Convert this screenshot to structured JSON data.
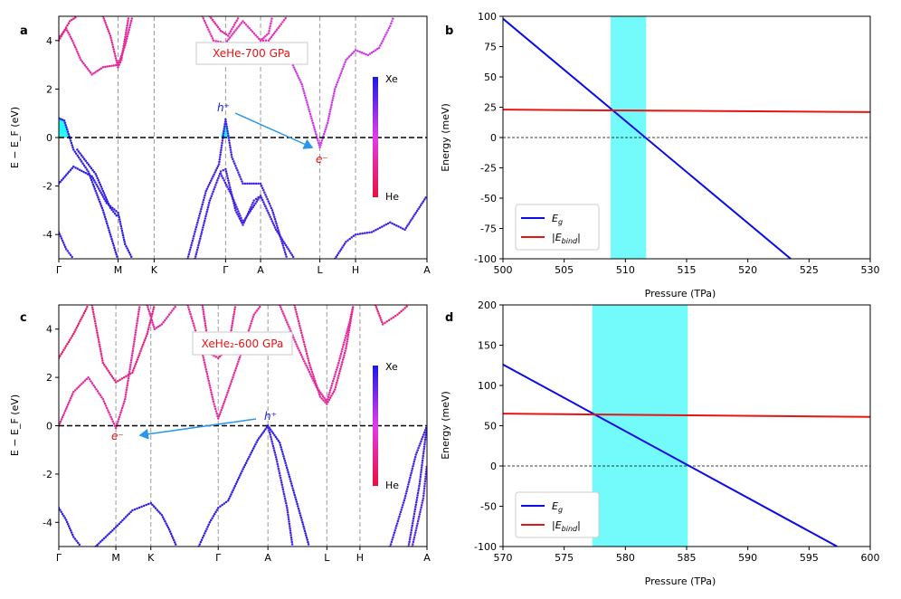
{
  "colors": {
    "xe": "#1a1ae6",
    "he": "#e8103c",
    "mid": "#e23ce8",
    "eg_line": "#0b0be8",
    "ebind_line": "#e81414",
    "shade": "#00f6f6",
    "arrow": "#2b96e6",
    "hole_label": "#1a1ae6",
    "electron_label": "#e81414",
    "title_text": "#e81414"
  },
  "chart_data": [
    {
      "panel": "a",
      "type": "band-structure",
      "title": "XeHe-700 GPa",
      "ylabel": "E − E_F (eV)",
      "ylim": [
        -5,
        5
      ],
      "yticks": [
        -4,
        -2,
        0,
        2,
        4
      ],
      "kpoints": [
        {
          "label": "Γ",
          "pos": 0
        },
        {
          "label": "M",
          "pos": 0.161
        },
        {
          "label": "K",
          "pos": 0.259
        },
        {
          "label": "Γ",
          "pos": 0.453
        },
        {
          "label": "A",
          "pos": 0.548
        },
        {
          "label": "L",
          "pos": 0.709
        },
        {
          "label": "H",
          "pos": 0.806
        },
        {
          "label": "A",
          "pos": 1
        }
      ],
      "colorbar": {
        "top": "Xe",
        "bottom": "He"
      },
      "hole_label": "h⁺",
      "electron_label": "e⁻",
      "bands": [
        {
          "weight": 0.95,
          "points": [
            [
              0,
              -1.9
            ],
            [
              0.04,
              -1.2
            ],
            [
              0.09,
              -1.6
            ],
            [
              0.13,
              -2.7
            ],
            [
              0.161,
              -3.1
            ],
            [
              0.18,
              -4.4
            ],
            [
              0.2,
              -5.0
            ]
          ]
        },
        {
          "weight": 0.95,
          "points": [
            [
              0,
              0.8
            ],
            [
              0.015,
              0.7
            ],
            [
              0.04,
              -0.5
            ],
            [
              0.08,
              -1.4
            ],
            [
              0.12,
              -3.0
            ],
            [
              0.16,
              -5.0
            ]
          ]
        },
        {
          "weight": 0.95,
          "points": [
            [
              0.05,
              -0.5
            ],
            [
              0.1,
              -1.5
            ],
            [
              0.14,
              -2.9
            ],
            [
              0.161,
              -3.3
            ]
          ]
        },
        {
          "weight": 0.9,
          "points": [
            [
              0,
              -3.9
            ],
            [
              0.02,
              -4.6
            ],
            [
              0.04,
              -5.0
            ]
          ]
        },
        {
          "weight": 0.9,
          "points": [
            [
              0.35,
              -5.0
            ],
            [
              0.4,
              -2.2
            ],
            [
              0.435,
              -1.1
            ],
            [
              0.453,
              0.75
            ],
            [
              0.47,
              -0.8
            ],
            [
              0.5,
              -1.9
            ],
            [
              0.548,
              -1.9
            ],
            [
              0.58,
              -3.0
            ],
            [
              0.62,
              -5.0
            ]
          ]
        },
        {
          "weight": 0.9,
          "points": [
            [
              0.37,
              -5.0
            ],
            [
              0.41,
              -2.6
            ],
            [
              0.44,
              -1.4
            ],
            [
              0.453,
              -1.3
            ],
            [
              0.48,
              -3.0
            ],
            [
              0.5,
              -3.6
            ],
            [
              0.53,
              -2.6
            ],
            [
              0.548,
              -2.4
            ],
            [
              0.59,
              -3.8
            ],
            [
              0.64,
              -5.0
            ]
          ]
        },
        {
          "weight": 0.9,
          "points": [
            [
              0.44,
              -1.5
            ],
            [
              0.47,
              -2.4
            ],
            [
              0.5,
              -3.5
            ],
            [
              0.548,
              -2.4
            ]
          ]
        },
        {
          "weight": 0.9,
          "points": [
            [
              0.75,
              -5.0
            ],
            [
              0.78,
              -4.3
            ],
            [
              0.806,
              -4.0
            ],
            [
              0.85,
              -3.9
            ],
            [
              0.9,
              -3.5
            ],
            [
              0.94,
              -3.8
            ],
            [
              0.97,
              -3.1
            ],
            [
              1.0,
              -2.4
            ]
          ]
        },
        {
          "weight": 0.55,
          "points": [
            [
              0.62,
              3.5
            ],
            [
              0.66,
              2.2
            ],
            [
              0.69,
              0.6
            ],
            [
              0.709,
              -0.4
            ],
            [
              0.73,
              0.6
            ],
            [
              0.75,
              2.0
            ],
            [
              0.78,
              3.2
            ],
            [
              0.806,
              3.6
            ],
            [
              0.84,
              3.4
            ],
            [
              0.87,
              3.7
            ],
            [
              0.9,
              4.6
            ],
            [
              0.91,
              5.0
            ]
          ]
        },
        {
          "weight": 0.3,
          "points": [
            [
              0,
              4.1
            ],
            [
              0.02,
              4.5
            ],
            [
              0.04,
              3.9
            ],
            [
              0.06,
              3.2
            ],
            [
              0.09,
              2.6
            ],
            [
              0.12,
              2.9
            ],
            [
              0.161,
              3.0
            ],
            [
              0.18,
              3.8
            ],
            [
              0.2,
              5.0
            ]
          ]
        },
        {
          "weight": 0.2,
          "points": [
            [
              0.0,
              4.0
            ],
            [
              0.03,
              4.8
            ],
            [
              0.05,
              5.0
            ]
          ]
        },
        {
          "weight": 0.25,
          "points": [
            [
              0.12,
              5.0
            ],
            [
              0.14,
              4.2
            ],
            [
              0.161,
              2.9
            ],
            [
              0.17,
              3.2
            ],
            [
              0.19,
              5.0
            ]
          ]
        },
        {
          "weight": 0.35,
          "points": [
            [
              0.39,
              5.0
            ],
            [
              0.42,
              4.0
            ],
            [
              0.453,
              3.9
            ],
            [
              0.5,
              4.8
            ],
            [
              0.548,
              4.0
            ],
            [
              0.57,
              4.0
            ],
            [
              0.6,
              4.6
            ],
            [
              0.62,
              5.0
            ]
          ]
        },
        {
          "weight": 0.3,
          "points": [
            [
              0.41,
              5.0
            ],
            [
              0.44,
              4.4
            ],
            [
              0.46,
              4.2
            ],
            [
              0.49,
              5.0
            ]
          ]
        },
        {
          "weight": 0.4,
          "points": [
            [
              0.548,
              4.0
            ],
            [
              0.57,
              4.3
            ],
            [
              0.58,
              5.0
            ]
          ]
        }
      ],
      "hole_pockets": [
        {
          "points": [
            [
              0,
              0.8
            ],
            [
              0.015,
              0.7
            ],
            [
              0.03,
              0
            ]
          ]
        },
        {
          "points": [
            [
              0.44,
              0
            ],
            [
              0.453,
              0.75
            ],
            [
              0.465,
              0
            ]
          ]
        }
      ]
    },
    {
      "panel": "b",
      "type": "line",
      "xlabel": "Pressure (TPa)",
      "ylabel": "Energy (meV)",
      "xlim": [
        500,
        530
      ],
      "ylim": [
        -100,
        100
      ],
      "xticks": [
        500,
        505,
        510,
        515,
        520,
        525,
        530
      ],
      "yticks": [
        -100,
        -75,
        -50,
        -25,
        0,
        25,
        50,
        75,
        100
      ],
      "shade_range": [
        508.8,
        511.7
      ],
      "series": [
        {
          "name": "E_g",
          "x": [
            500,
            523.5
          ],
          "y": [
            98,
            -100
          ]
        },
        {
          "name": "|E_bind|",
          "x": [
            500,
            530
          ],
          "y": [
            23,
            21
          ]
        }
      ],
      "legend": [
        {
          "symbol": "E",
          "sub": "g"
        },
        {
          "symbol": "|E",
          "sub": "bind",
          "suffix": "|"
        }
      ]
    },
    {
      "panel": "c",
      "type": "band-structure",
      "title": "XeHe₂-600 GPa",
      "ylabel": "E − E_F (eV)",
      "ylim": [
        -5,
        5
      ],
      "yticks": [
        -4,
        -2,
        0,
        2,
        4
      ],
      "kpoints": [
        {
          "label": "Γ",
          "pos": 0
        },
        {
          "label": "M",
          "pos": 0.155
        },
        {
          "label": "K",
          "pos": 0.25
        },
        {
          "label": "Γ",
          "pos": 0.433
        },
        {
          "label": "A",
          "pos": 0.568
        },
        {
          "label": "L",
          "pos": 0.728
        },
        {
          "label": "H",
          "pos": 0.818
        },
        {
          "label": "A",
          "pos": 1
        }
      ],
      "colorbar": {
        "top": "Xe",
        "bottom": "He"
      },
      "hole_label": "h⁺",
      "electron_label": "e⁻",
      "bands": [
        {
          "weight": 0.95,
          "points": [
            [
              0,
              -3.4
            ],
            [
              0.02,
              -3.9
            ],
            [
              0.04,
              -4.6
            ],
            [
              0.06,
              -5.0
            ]
          ]
        },
        {
          "weight": 0.95,
          "points": [
            [
              0.1,
              -5.0
            ],
            [
              0.155,
              -4.2
            ],
            [
              0.2,
              -3.5
            ],
            [
              0.25,
              -3.2
            ],
            [
              0.28,
              -3.7
            ],
            [
              0.3,
              -4.3
            ],
            [
              0.32,
              -5.0
            ]
          ]
        },
        {
          "weight": 0.95,
          "points": [
            [
              0.38,
              -5.0
            ],
            [
              0.41,
              -4.0
            ],
            [
              0.433,
              -3.4
            ],
            [
              0.46,
              -3.1
            ],
            [
              0.5,
              -1.8
            ],
            [
              0.54,
              -0.6
            ],
            [
              0.568,
              0
            ],
            [
              0.6,
              -0.7
            ],
            [
              0.63,
              -2.3
            ],
            [
              0.66,
              -3.9
            ],
            [
              0.68,
              -5.0
            ]
          ]
        },
        {
          "weight": 0.9,
          "points": [
            [
              0.568,
              0
            ],
            [
              0.59,
              -1.3
            ],
            [
              0.62,
              -3.4
            ],
            [
              0.635,
              -5.0
            ]
          ]
        },
        {
          "weight": 0.9,
          "points": [
            [
              0.9,
              -5.0
            ],
            [
              0.94,
              -3.0
            ],
            [
              0.97,
              -1.2
            ],
            [
              1.0,
              0
            ]
          ]
        },
        {
          "weight": 0.9,
          "points": [
            [
              0.95,
              -5.0
            ],
            [
              0.98,
              -2.4
            ],
            [
              1.0,
              0
            ]
          ]
        },
        {
          "weight": 0.85,
          "points": [
            [
              0.96,
              -5.0
            ],
            [
              0.99,
              -3.0
            ],
            [
              1.0,
              -1.6
            ]
          ]
        },
        {
          "weight": 0.3,
          "points": [
            [
              0,
              0
            ],
            [
              0.04,
              1.4
            ],
            [
              0.08,
              2.0
            ],
            [
              0.12,
              1.1
            ],
            [
              0.155,
              -0.1
            ],
            [
              0.18,
              1.1
            ],
            [
              0.2,
              3.0
            ],
            [
              0.22,
              5.0
            ]
          ]
        },
        {
          "weight": 0.15,
          "points": [
            [
              0,
              2.8
            ],
            [
              0.04,
              3.8
            ],
            [
              0.08,
              5.0
            ]
          ]
        },
        {
          "weight": 0.2,
          "points": [
            [
              0.09,
              5.0
            ],
            [
              0.12,
              2.6
            ],
            [
              0.155,
              1.8
            ],
            [
              0.2,
              2.2
            ],
            [
              0.24,
              3.8
            ],
            [
              0.26,
              5.0
            ]
          ]
        },
        {
          "weight": 0.3,
          "points": [
            [
              0.24,
              5.0
            ],
            [
              0.26,
              4.0
            ],
            [
              0.28,
              4.2
            ],
            [
              0.32,
              5.0
            ]
          ]
        },
        {
          "weight": 0.3,
          "points": [
            [
              0.35,
              5.0
            ],
            [
              0.39,
              3.0
            ],
            [
              0.42,
              1.0
            ],
            [
              0.433,
              0.3
            ],
            [
              0.45,
              1.0
            ],
            [
              0.5,
              3.2
            ],
            [
              0.53,
              4.6
            ],
            [
              0.55,
              5.0
            ]
          ]
        },
        {
          "weight": 0.25,
          "points": [
            [
              0.39,
              5.0
            ],
            [
              0.41,
              3.0
            ],
            [
              0.433,
              2.8
            ],
            [
              0.46,
              3.2
            ],
            [
              0.48,
              5.0
            ]
          ]
        },
        {
          "weight": 0.25,
          "points": [
            [
              0.64,
              5.0
            ],
            [
              0.68,
              2.6
            ],
            [
              0.71,
              1.2
            ],
            [
              0.728,
              0.9
            ],
            [
              0.75,
              1.5
            ],
            [
              0.78,
              3.2
            ],
            [
              0.8,
              5.0
            ]
          ]
        },
        {
          "weight": 0.3,
          "points": [
            [
              0.6,
              5.0
            ],
            [
              0.65,
              3.2
            ],
            [
              0.7,
              1.6
            ],
            [
              0.728,
              1.0
            ],
            [
              0.76,
              2.6
            ],
            [
              0.79,
              4.3
            ],
            [
              0.8,
              5.0
            ]
          ]
        },
        {
          "weight": 0.2,
          "points": [
            [
              0.86,
              5.0
            ],
            [
              0.88,
              4.2
            ],
            [
              0.92,
              4.6
            ],
            [
              0.95,
              5.0
            ]
          ]
        }
      ],
      "hole_pockets": []
    },
    {
      "panel": "d",
      "type": "line",
      "xlabel": "Pressure (TPa)",
      "ylabel": "Energy (meV)",
      "xlim": [
        570,
        600
      ],
      "ylim": [
        -100,
        200
      ],
      "xticks": [
        570,
        575,
        580,
        585,
        590,
        595,
        600
      ],
      "yticks": [
        -100,
        -50,
        0,
        50,
        100,
        150,
        200
      ],
      "shade_range": [
        577.3,
        585.1
      ],
      "series": [
        {
          "name": "E_g",
          "x": [
            570,
            597.3
          ],
          "y": [
            126,
            -100
          ]
        },
        {
          "name": "|E_bind|",
          "x": [
            570,
            600
          ],
          "y": [
            65,
            61
          ]
        }
      ],
      "legend": [
        {
          "symbol": "E",
          "sub": "g"
        },
        {
          "symbol": "|E",
          "sub": "bind",
          "suffix": "|"
        }
      ]
    }
  ]
}
